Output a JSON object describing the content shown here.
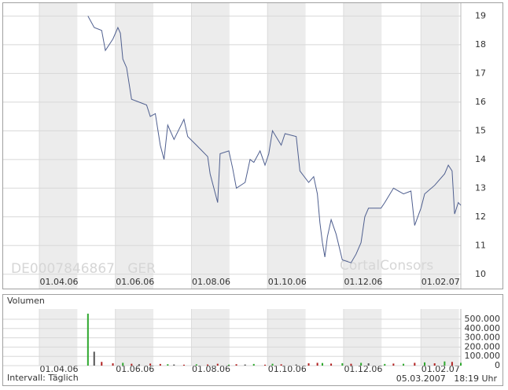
{
  "chart_data": [
    {
      "type": "line",
      "annotations": [
        "DE0007846867   GER",
        "CortalConsors"
      ],
      "x": [
        "10.05.06",
        "15.05.06",
        "21.05.06",
        "24.05.06",
        "30.05.06",
        "03.06.06",
        "05.06.06",
        "07.06.06",
        "10.06.06",
        "14.06.06",
        "20.06.06",
        "26.06.06",
        "29.06.06",
        "03.07.06",
        "07.07.06",
        "10.07.06",
        "13.07.06",
        "18.07.06",
        "26.07.06",
        "29.07.06",
        "05.08.06",
        "14.08.06",
        "16.08.06",
        "22.08.06",
        "24.08.06",
        "31.08.06",
        "03.09.06",
        "06.09.06",
        "13.09.06",
        "17.09.06",
        "20.09.06",
        "25.09.06",
        "29.09.06",
        "02.10.06",
        "05.10.06",
        "12.10.06",
        "15.10.06",
        "24.10.06",
        "27.10.06",
        "03.11.06",
        "07.11.06",
        "10.11.06",
        "12.11.06",
        "14.11.06",
        "16.11.06",
        "18.11.06",
        "21.11.06",
        "25.11.06",
        "30.11.06",
        "07.12.06",
        "11.12.06",
        "15.12.06",
        "18.12.06",
        "21.12.06",
        "31.12.06",
        "03.01.07",
        "10.01.07",
        "18.01.07",
        "24.01.07",
        "27.01.07",
        "01.02.07",
        "04.02.07",
        "12.02.07",
        "20.02.07",
        "23.02.07",
        "26.02.07",
        "28.02.07",
        "03.03.07",
        "05.03.07"
      ],
      "values": [
        19.0,
        18.6,
        18.5,
        17.8,
        18.2,
        18.6,
        18.4,
        17.5,
        17.2,
        16.1,
        16.0,
        15.9,
        15.5,
        15.6,
        14.5,
        14.0,
        15.2,
        14.7,
        15.4,
        14.8,
        14.5,
        14.1,
        13.5,
        12.5,
        14.2,
        14.3,
        13.7,
        13.0,
        13.2,
        14.0,
        13.9,
        14.3,
        13.8,
        14.2,
        15.0,
        14.5,
        14.9,
        14.8,
        13.6,
        13.2,
        13.4,
        12.8,
        11.8,
        11.1,
        10.6,
        11.3,
        11.9,
        11.4,
        10.5,
        10.4,
        10.7,
        11.1,
        12.0,
        12.3,
        12.3,
        12.5,
        13.0,
        12.8,
        12.9,
        11.7,
        12.3,
        12.8,
        13.1,
        13.5,
        13.8,
        13.6,
        12.1,
        12.5,
        12.4
      ],
      "color": "#4f5f8f",
      "xlim": [
        "03.03.06",
        "05.03.07"
      ],
      "xticks": [
        "01.04.06",
        "01.06.06",
        "01.08.06",
        "01.10.06",
        "01.12.06",
        "01.02.07"
      ],
      "ylim": [
        9.5,
        19.45
      ],
      "yticks": [
        10,
        11,
        12,
        13,
        14,
        15,
        16,
        17,
        18,
        19
      ],
      "grid": true
    },
    {
      "type": "bar",
      "title": "Volumen",
      "x": [
        "10.05.06",
        "15.05.06",
        "21.05.06",
        "30.05.06",
        "07.06.06",
        "14.06.06",
        "20.06.06",
        "29.06.06",
        "07.07.06",
        "13.07.06",
        "18.07.06",
        "26.07.06",
        "05.08.06",
        "14.08.06",
        "22.08.06",
        "31.08.06",
        "06.09.06",
        "13.09.06",
        "20.09.06",
        "29.09.06",
        "05.10.06",
        "12.10.06",
        "24.10.06",
        "03.11.06",
        "10.11.06",
        "14.11.06",
        "21.11.06",
        "30.11.06",
        "07.12.06",
        "15.12.06",
        "21.12.06",
        "03.01.07",
        "10.01.07",
        "18.01.07",
        "27.01.07",
        "04.02.07",
        "12.02.07",
        "20.02.07",
        "26.02.07",
        "05.03.07"
      ],
      "values": [
        560000,
        150000,
        40000,
        25000,
        30000,
        20000,
        15000,
        22000,
        18000,
        15000,
        12000,
        10000,
        14000,
        12000,
        20000,
        10000,
        15000,
        12000,
        18000,
        10000,
        20000,
        14000,
        12000,
        25000,
        30000,
        28000,
        22000,
        26000,
        20000,
        30000,
        25000,
        18000,
        22000,
        20000,
        30000,
        35000,
        25000,
        45000,
        40000,
        30000
      ],
      "colors": [
        "#2ea82e",
        "#555555",
        "#b22222",
        "#b22222",
        "#2ea82e",
        "#b22222",
        "#555555",
        "#b22222",
        "#b22222",
        "#2ea82e",
        "#555555",
        "#b22222",
        "#2ea82e",
        "#b22222",
        "#b22222",
        "#2ea82e",
        "#b22222",
        "#555555",
        "#2ea82e",
        "#b22222",
        "#2ea82e",
        "#b22222",
        "#555555",
        "#b22222",
        "#b22222",
        "#2ea82e",
        "#b22222",
        "#2ea82e",
        "#b22222",
        "#2ea82e",
        "#555555",
        "#2ea82e",
        "#b22222",
        "#2ea82e",
        "#b22222",
        "#2ea82e",
        "#b22222",
        "#2ea82e",
        "#b22222",
        "#2ea82e"
      ],
      "xlim": [
        "03.03.06",
        "05.03.07"
      ],
      "xticks": [
        "01.04.06",
        "01.06.06",
        "01.08.06",
        "01.10.06",
        "01.12.06",
        "01.02.07"
      ],
      "ylim": [
        0,
        610000
      ],
      "yticks": [
        0,
        {
          "value": 100000,
          "label": "100.000"
        },
        {
          "value": 200000,
          "label": "200.000"
        },
        {
          "value": 300000,
          "label": "300.000"
        },
        {
          "value": 400000,
          "label": "400.000"
        },
        {
          "value": 500000,
          "label": "500.000"
        }
      ],
      "grid": true
    }
  ],
  "footer": {
    "interval": "Intervall: Täglich",
    "timestamp": "05.03.2007   18:19 Uhr"
  }
}
